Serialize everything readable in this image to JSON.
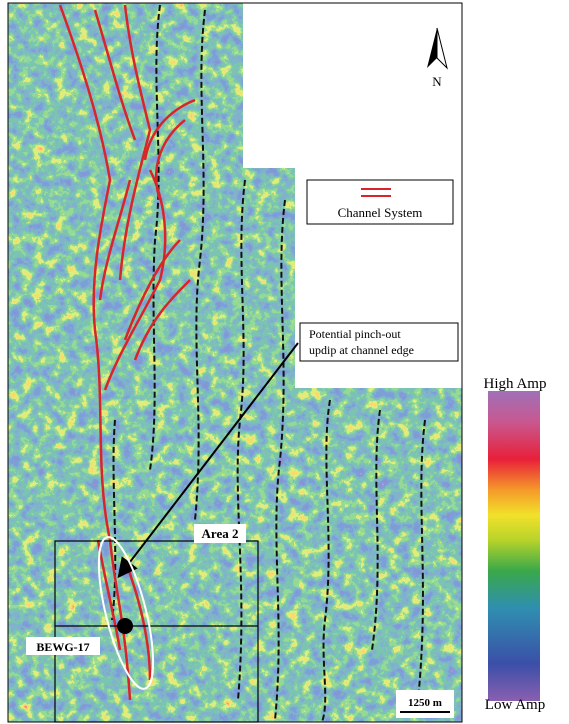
{
  "north": "N",
  "legend": {
    "label": "Channel System"
  },
  "annotation": {
    "lines": [
      "Potential pinch-out",
      "updip at channel edge"
    ]
  },
  "colorbar": {
    "high": "High Amp",
    "low": "Low Amp"
  },
  "area_label": "Area 2",
  "well_label": "BEWG-17",
  "scale_bar": "1250 m"
}
